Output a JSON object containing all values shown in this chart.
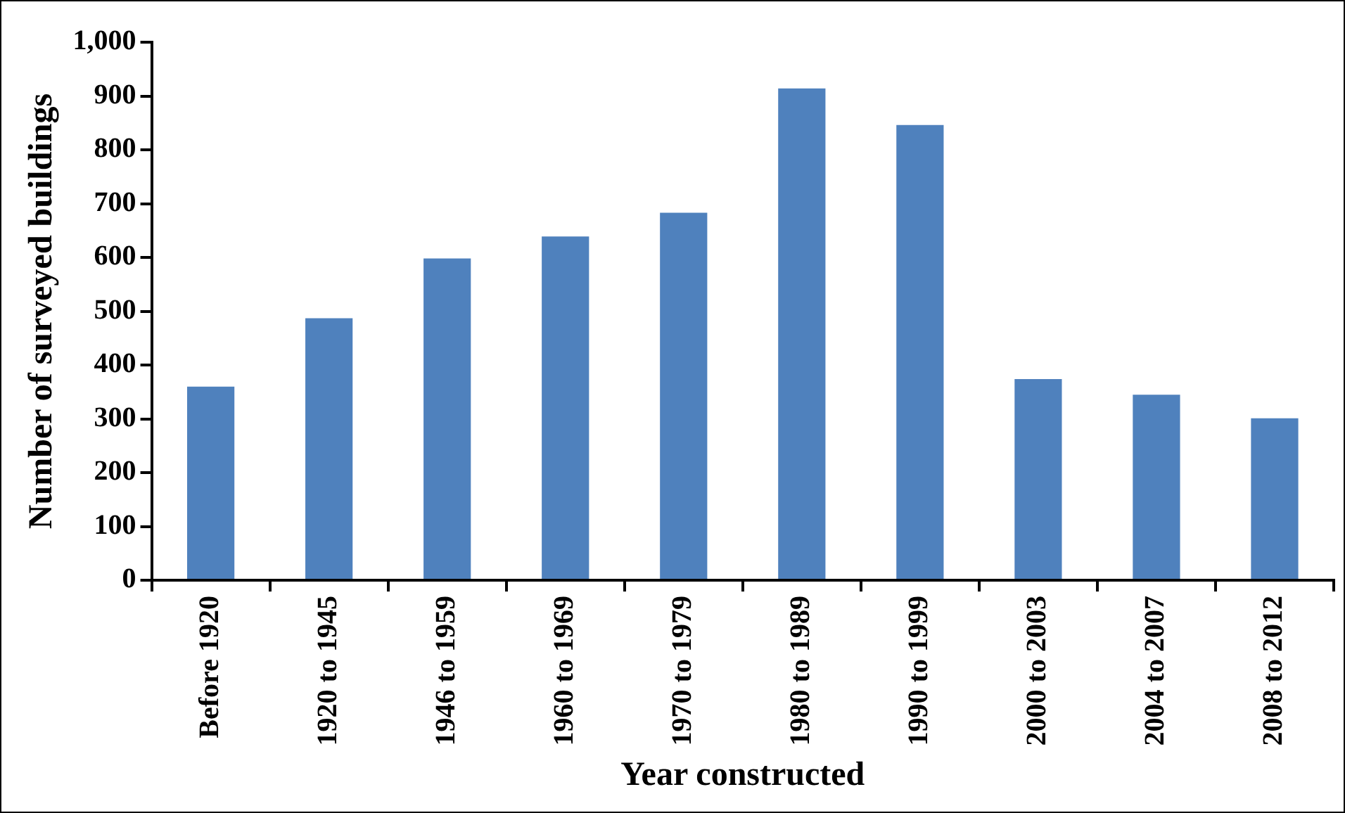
{
  "chart_data": {
    "type": "bar",
    "xlabel": "Year constructed",
    "ylabel": "Number of surveyed buildings",
    "categories": [
      "Before 1920",
      "1920 to 1945",
      "1946 to 1959",
      "1960 to 1969",
      "1970 to 1979",
      "1980 to 1989",
      "1990 to 1999",
      "2000 to 2003",
      "2004 to 2007",
      "2008 to 2012"
    ],
    "values": [
      360,
      487,
      598,
      639,
      683,
      914,
      846,
      374,
      345,
      301
    ],
    "color": "#4f81bd",
    "ylim": [
      0,
      1000
    ],
    "yticks": [
      0,
      {
        "value": 100,
        "label": "100"
      },
      {
        "value": 200,
        "label": "200"
      },
      {
        "value": 300,
        "label": "300"
      },
      {
        "value": 400,
        "label": "400"
      },
      {
        "value": 500,
        "label": "500"
      },
      {
        "value": 600,
        "label": "600"
      },
      {
        "value": 700,
        "label": "700"
      },
      {
        "value": 800,
        "label": "800"
      },
      {
        "value": 900,
        "label": "900"
      },
      {
        "value": 1000,
        "label": "1,000"
      }
    ],
    "grid": false,
    "legend": false
  }
}
